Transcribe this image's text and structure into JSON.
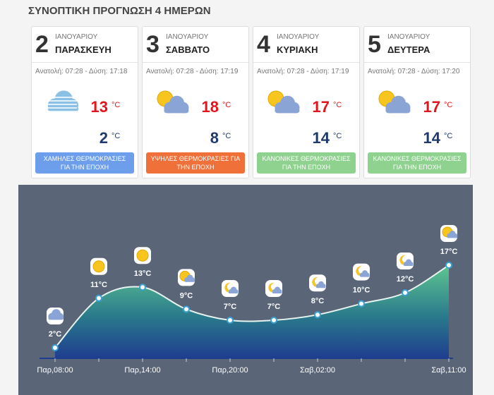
{
  "title": "ΣΥΝΟΠΤΙΚΗ ΠΡΟΓΝΩΣΗ 4 ΗΜΕΡΩΝ",
  "unit": "°C",
  "cards": [
    {
      "day": 2,
      "month": "ΙΑΝΟΥΑΡΙΟΥ",
      "weekday": "ΠΑΡΑΣΚΕΥΗ",
      "sun": "Ανατολή: 07:28 - Δύση: 17:18",
      "high": 13,
      "low": 2,
      "note": "ΧΑΜΗΛΕΣ ΘΕΡΜΟΚΡΑΣΙΕΣ ΓΙΑ ΤΗΝ ΕΠΟΧΗ",
      "note_color": "#6d9eeb"
    },
    {
      "day": 3,
      "month": "ΙΑΝΟΥΑΡΙΟΥ",
      "weekday": "ΣΑΒΒΑΤΟ",
      "sun": "Ανατολή: 07:28 - Δύση: 17:19",
      "high": 18,
      "low": 8,
      "note": "ΥΨΗΛΕΣ ΘΕΡΜΟΚΡΑΣΙΕΣ ΓΙΑ ΤΗΝ ΕΠΟΧΗ",
      "note_color": "#f0703a"
    },
    {
      "day": 4,
      "month": "ΙΑΝΟΥΑΡΙΟΥ",
      "weekday": "ΚΥΡΙΑΚΗ",
      "sun": "Ανατολή: 07:28 - Δύση: 17:19",
      "high": 17,
      "low": 14,
      "note": "ΚΑΝΟΝΙΚΕΣ ΘΕΡΜΟΚΡΑΣΙΕΣ ΓΙΑ ΤΗΝ ΕΠΟΧΗ",
      "note_color": "#8fd18f"
    },
    {
      "day": 5,
      "month": "ΙΑΝΟΥΑΡΙΟΥ",
      "weekday": "ΔΕΥΤΕΡΑ",
      "sun": "Ανατολή: 07:28 - Δύση: 17:20",
      "high": 17,
      "low": 14,
      "note": "ΚΑΝΟΝΙΚΕΣ ΘΕΡΜΟΚΡΑΣΙΕΣ ΓΙΑ ΤΗΝ ΕΠΟΧΗ",
      "note_color": "#8fd18f"
    }
  ],
  "chart_data": {
    "type": "area",
    "categories": [
      "Παρ,08:00",
      null,
      "Παρ,14:00",
      null,
      "Παρ,20:00",
      null,
      "Σαβ,02:00",
      null,
      null,
      "Σαβ,11:00"
    ],
    "values": [
      2,
      11,
      13,
      9,
      7,
      7,
      8,
      10,
      12,
      17
    ],
    "value_labels": [
      "2°C",
      "11°C",
      "13°C",
      "9°C",
      "7°C",
      "7°C",
      "8°C",
      "10°C",
      "12°C",
      "17°C"
    ]
  }
}
